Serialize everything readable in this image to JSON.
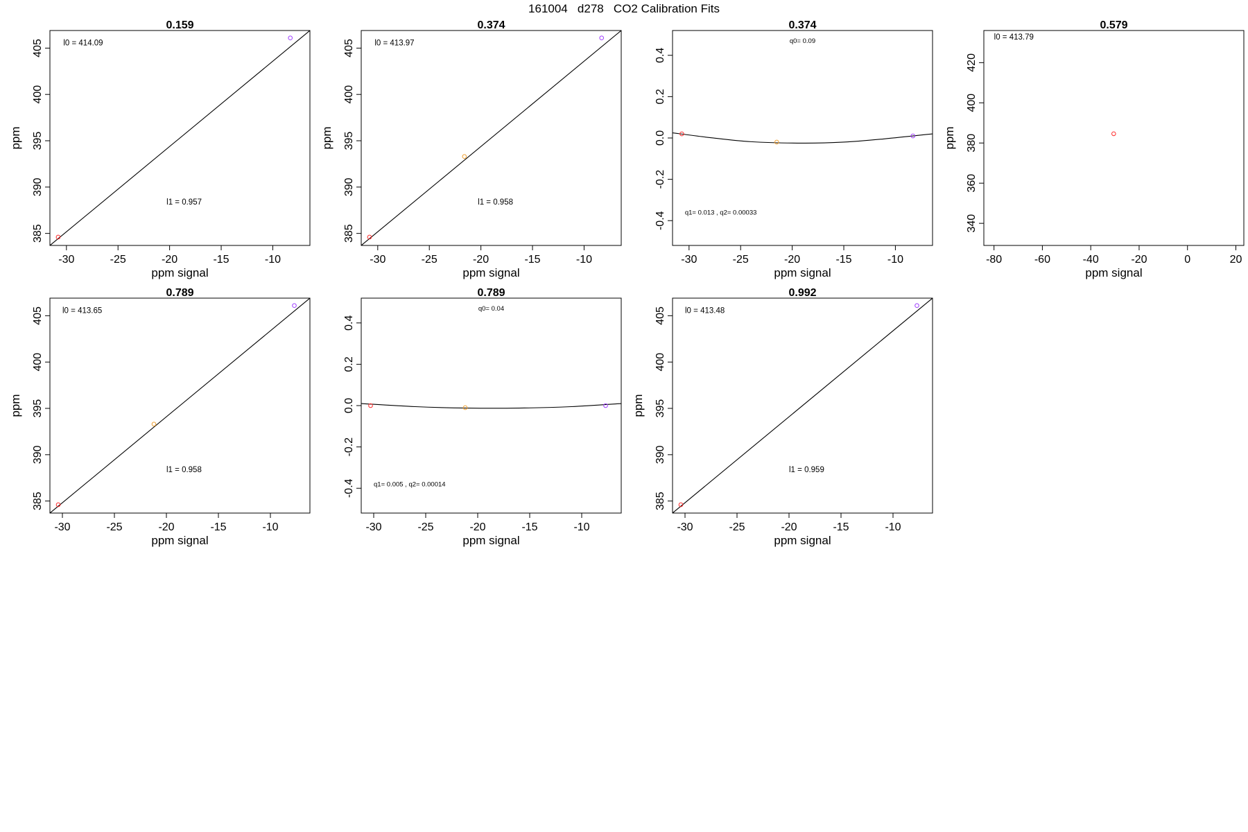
{
  "figure_title": "161004   d278   CO2 Calibration Fits",
  "colors": {
    "point_low": "#ff2a2a",
    "point_mid": "#f0a030",
    "point_high": "#a040ff",
    "fit_line": "#000000"
  },
  "chart_data": [
    {
      "type": "scatter",
      "title": "0.159",
      "xlabel": "ppm signal",
      "ylabel": "ppm",
      "xlim": [
        -31.6,
        -6.4
      ],
      "ylim": [
        383.7,
        406.9
      ],
      "xticks": [
        -30,
        -25,
        -20,
        -15,
        -10
      ],
      "yticks": [
        385,
        390,
        395,
        400,
        405
      ],
      "fit": {
        "kind": "line",
        "from": [
          -31.6,
          383.7
        ],
        "to": [
          -6.4,
          406.9
        ]
      },
      "points": [
        {
          "x": -30.8,
          "y": 384.6,
          "color": "#ff2a2a"
        },
        {
          "x": -8.3,
          "y": 406.1,
          "color": "#a040ff"
        }
      ],
      "annotations": [
        {
          "label": "l0 = ",
          "value": "414.09",
          "x": -30.3,
          "y": 405.3
        },
        {
          "label": "l1 = ",
          "value": "0.957",
          "x": -20.3,
          "y": 388.1
        }
      ]
    },
    {
      "type": "scatter",
      "title": "0.374",
      "xlabel": "ppm signal",
      "ylabel": "ppm",
      "xlim": [
        -31.6,
        -6.4
      ],
      "ylim": [
        383.7,
        406.9
      ],
      "xticks": [
        -30,
        -25,
        -20,
        -15,
        -10
      ],
      "yticks": [
        385,
        390,
        395,
        400,
        405
      ],
      "fit": {
        "kind": "line",
        "from": [
          -31.6,
          383.7
        ],
        "to": [
          -6.4,
          406.9
        ]
      },
      "points": [
        {
          "x": -30.8,
          "y": 384.6,
          "color": "#ff2a2a"
        },
        {
          "x": -21.6,
          "y": 393.3,
          "color": "#f0a030"
        },
        {
          "x": -8.3,
          "y": 406.1,
          "color": "#a040ff"
        }
      ],
      "annotations": [
        {
          "label": "l0 = ",
          "value": "413.97",
          "x": -30.3,
          "y": 405.3
        },
        {
          "label": "l1 = ",
          "value": "0.958",
          "x": -20.3,
          "y": 388.1
        }
      ]
    },
    {
      "type": "scatter",
      "title": "0.374",
      "xlabel": "ppm signal",
      "ylabel": "",
      "xlim": [
        -31.6,
        -6.4
      ],
      "ylim": [
        -0.52,
        0.52
      ],
      "xticks": [
        -30,
        -25,
        -20,
        -15,
        -10
      ],
      "yticks": [
        -0.4,
        -0.2,
        0.0,
        0.2,
        0.4
      ],
      "fit": {
        "kind": "curve",
        "points": [
          [
            -31.6,
            0.025
          ],
          [
            -28,
            0.002
          ],
          [
            -24,
            -0.018
          ],
          [
            -19,
            -0.025
          ],
          [
            -15,
            -0.02
          ],
          [
            -11,
            -0.004
          ],
          [
            -6.4,
            0.02
          ]
        ]
      },
      "points": [
        {
          "x": -30.7,
          "y": 0.02,
          "color": "#ff2a2a"
        },
        {
          "x": -21.5,
          "y": -0.02,
          "color": "#f0a030"
        },
        {
          "x": -8.3,
          "y": 0.01,
          "color": "#a040ff"
        }
      ],
      "annotations": [
        {
          "label": "q0= ",
          "value": "0.09",
          "x": -19.0,
          "y": 0.46
        },
        {
          "label": "q1= ",
          "value": "0.013 , q2= 0.00033",
          "x": -30.4,
          "y": -0.37
        }
      ]
    },
    {
      "type": "scatter",
      "title": "0.579",
      "xlabel": "ppm signal",
      "ylabel": "ppm",
      "xlim": [
        -84.2,
        23.3
      ],
      "ylim": [
        329,
        436
      ],
      "xticks": [
        -80,
        -60,
        -40,
        -20,
        0,
        20
      ],
      "yticks": [
        340,
        360,
        380,
        400,
        420
      ],
      "points": [
        {
          "x": -30.5,
          "y": 384.6,
          "color": "#ff2a2a"
        }
      ],
      "annotations": [
        {
          "label": "l0 = ",
          "value": "413.79",
          "x": -80.0,
          "y": 431.5
        }
      ]
    },
    {
      "type": "scatter",
      "title": "0.789",
      "xlabel": "ppm signal",
      "ylabel": "ppm",
      "xlim": [
        -31.2,
        -6.2
      ],
      "ylim": [
        383.7,
        406.9
      ],
      "xticks": [
        -30,
        -25,
        -20,
        -15,
        -10
      ],
      "yticks": [
        385,
        390,
        395,
        400,
        405
      ],
      "fit": {
        "kind": "line",
        "from": [
          -31.2,
          383.7
        ],
        "to": [
          -6.2,
          406.9
        ]
      },
      "points": [
        {
          "x": -30.4,
          "y": 384.6,
          "color": "#ff2a2a"
        },
        {
          "x": -21.2,
          "y": 393.3,
          "color": "#f0a030"
        },
        {
          "x": -7.7,
          "y": 406.1,
          "color": "#a040ff"
        }
      ],
      "annotations": [
        {
          "label": "l0 = ",
          "value": "413.65",
          "x": -30.0,
          "y": 405.3
        },
        {
          "label": "l1 = ",
          "value": "0.958",
          "x": -20.0,
          "y": 388.1
        }
      ]
    },
    {
      "type": "scatter",
      "title": "0.789",
      "xlabel": "ppm signal",
      "ylabel": "",
      "xlim": [
        -31.2,
        -6.2
      ],
      "ylim": [
        -0.52,
        0.52
      ],
      "xticks": [
        -30,
        -25,
        -20,
        -15,
        -10
      ],
      "yticks": [
        -0.4,
        -0.2,
        0.0,
        0.2,
        0.4
      ],
      "fit": {
        "kind": "curve",
        "points": [
          [
            -31.2,
            0.01
          ],
          [
            -26,
            -0.005
          ],
          [
            -21,
            -0.012
          ],
          [
            -16,
            -0.012
          ],
          [
            -11,
            -0.005
          ],
          [
            -6.2,
            0.01
          ]
        ]
      },
      "points": [
        {
          "x": -30.3,
          "y": 0.0,
          "color": "#ff2a2a"
        },
        {
          "x": -21.2,
          "y": -0.01,
          "color": "#f0a030"
        },
        {
          "x": -7.7,
          "y": 0.0,
          "color": "#a040ff"
        }
      ],
      "annotations": [
        {
          "label": "q0= ",
          "value": "0.04",
          "x": -18.7,
          "y": 0.46
        },
        {
          "label": "q1= ",
          "value": "0.005 , q2= 0.00014",
          "x": -30.0,
          "y": -0.39
        }
      ]
    },
    {
      "type": "scatter",
      "title": "0.992",
      "xlabel": "ppm signal",
      "ylabel": "ppm",
      "xlim": [
        -31.2,
        -6.2
      ],
      "ylim": [
        383.7,
        406.9
      ],
      "xticks": [
        -30,
        -25,
        -20,
        -15,
        -10
      ],
      "yticks": [
        385,
        390,
        395,
        400,
        405
      ],
      "fit": {
        "kind": "line",
        "from": [
          -31.2,
          383.7
        ],
        "to": [
          -6.2,
          406.9
        ]
      },
      "points": [
        {
          "x": -30.4,
          "y": 384.6,
          "color": "#ff2a2a"
        },
        {
          "x": -7.7,
          "y": 406.1,
          "color": "#a040ff"
        }
      ],
      "annotations": [
        {
          "label": "l0 = ",
          "value": "413.48",
          "x": -30.0,
          "y": 405.3
        },
        {
          "label": "l1 = ",
          "value": "0.959",
          "x": -20.0,
          "y": 388.1
        }
      ]
    }
  ]
}
